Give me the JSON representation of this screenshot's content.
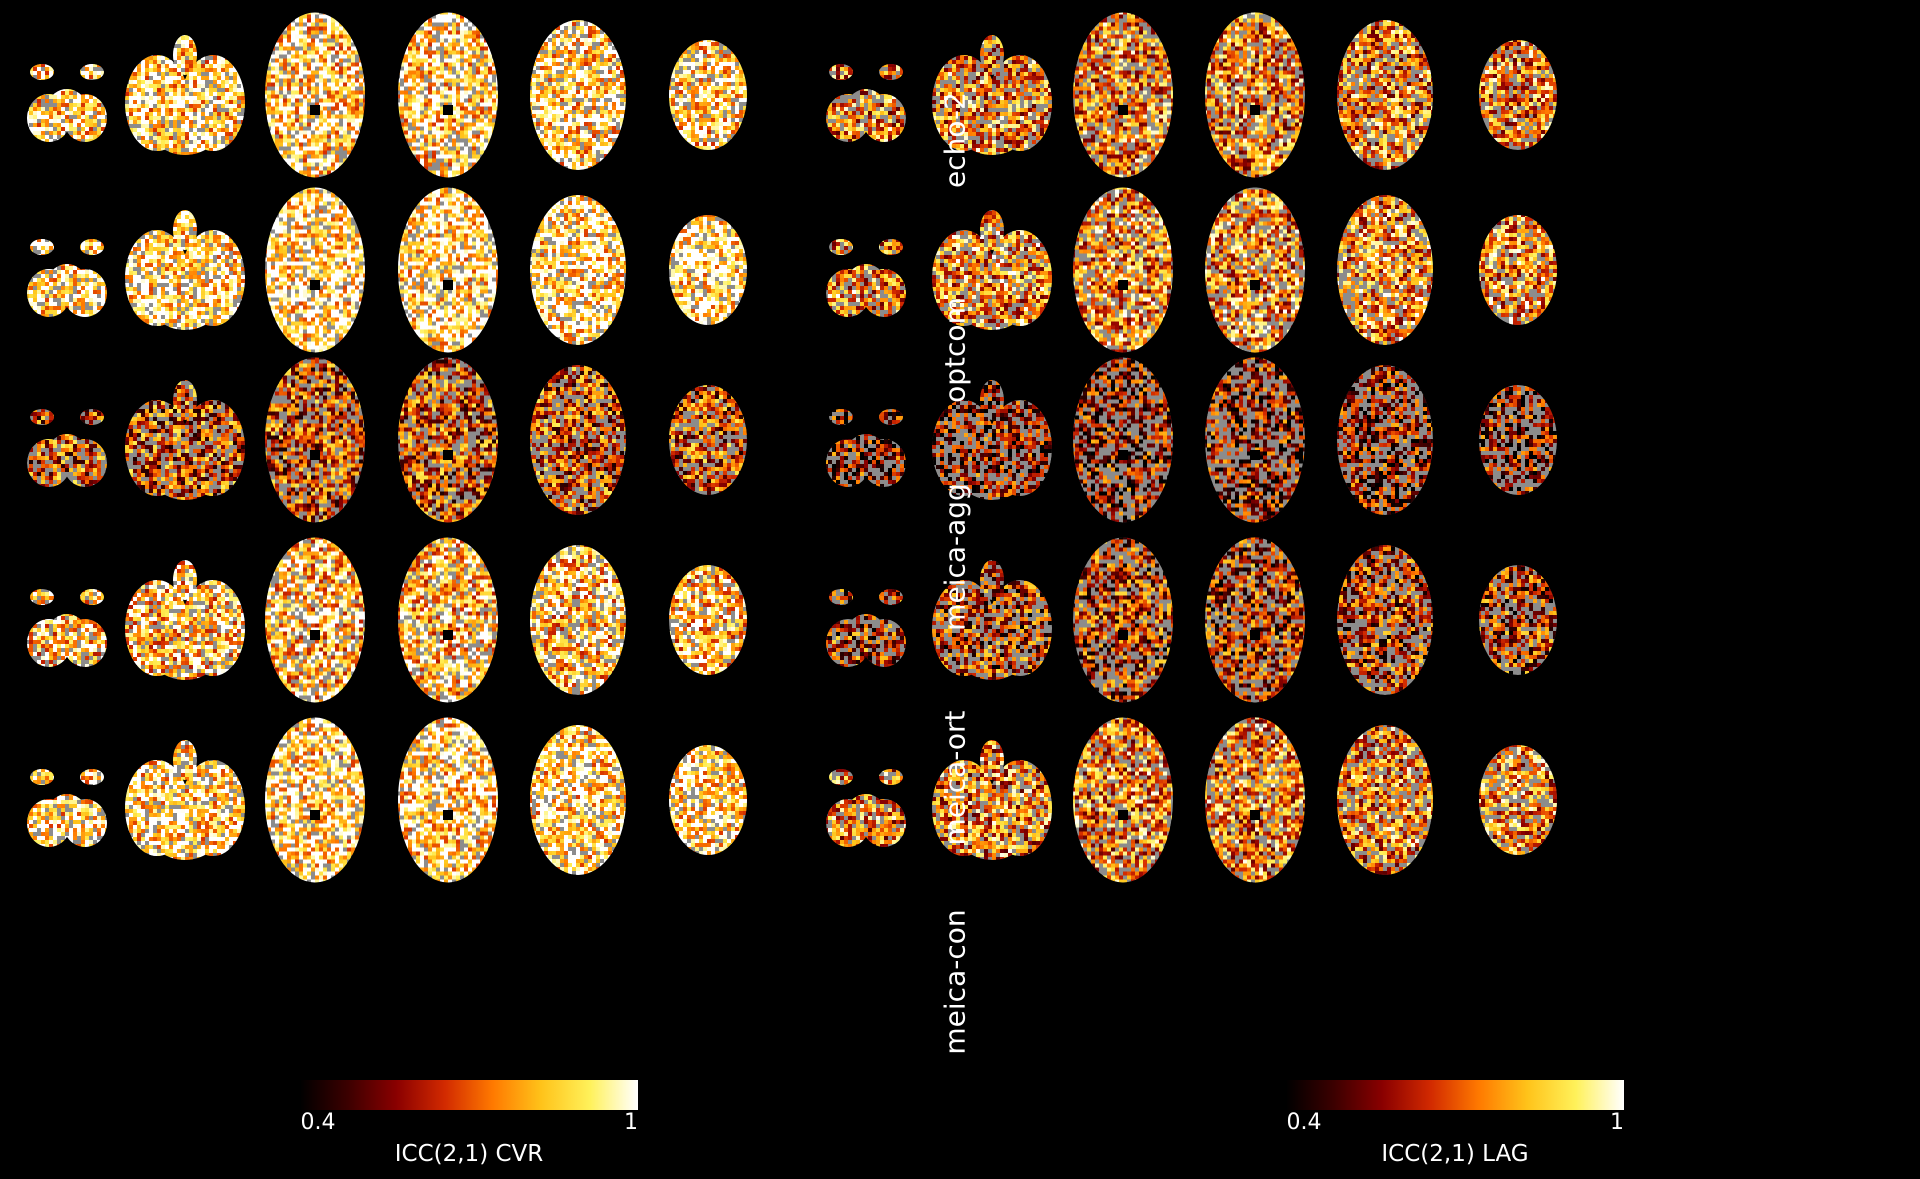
{
  "figure": {
    "panels": [
      {
        "id": "cvr",
        "colorbar": {
          "label": "ICC(2,1) CVR",
          "min_label": "0.4",
          "max_label": "1"
        }
      },
      {
        "id": "lag",
        "colorbar": {
          "label": "ICC(2,1) LAG",
          "min_label": "0.4",
          "max_label": "1"
        }
      }
    ],
    "rows": [
      {
        "label": "echo-2",
        "cvr_level": 0.78,
        "lag_level": 0.55
      },
      {
        "label": "optcom",
        "cvr_level": 0.82,
        "lag_level": 0.58
      },
      {
        "label": "meica-agg",
        "cvr_level": 0.42,
        "lag_level": 0.25
      },
      {
        "label": "meica-ort",
        "cvr_level": 0.72,
        "lag_level": 0.35
      },
      {
        "label": "meica-con",
        "cvr_level": 0.8,
        "lag_level": 0.55
      }
    ],
    "slices_per_row": 6,
    "colormap": [
      "#000000",
      "#3c0000",
      "#8a0000",
      "#d22a00",
      "#ff7a00",
      "#ffc31a",
      "#fff15a",
      "#ffffff"
    ]
  }
}
